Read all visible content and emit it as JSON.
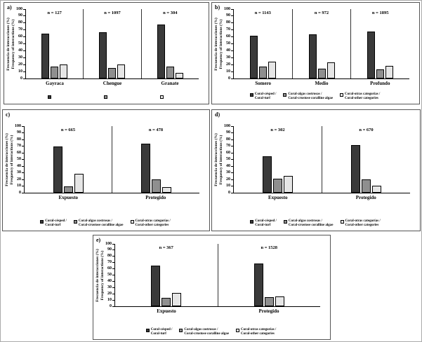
{
  "figure": {
    "y_axis_label_line1": "Frecuencia de interacciones (%)",
    "y_axis_label_line2": "Frequency of interactions (%)"
  },
  "colors": {
    "series1": "#3a3a3a",
    "series2": "#8f8f8f",
    "series3": "#e6e6e6",
    "axis": "#000000"
  },
  "legend": {
    "items": [
      {
        "key": "coral-turf",
        "line1": "Coral-césped /",
        "line2": "Coral-turf",
        "color": "#3a3a3a"
      },
      {
        "key": "coral-crustose-coralline-algae",
        "line1": "Coral-algas costrosas /",
        "line2": "Coral-crustose coralline algae",
        "color": "#8f8f8f"
      },
      {
        "key": "coral-other-categories",
        "line1": "Coral-otras categorías /",
        "line2": "Coral-other categories",
        "color": "#e6e6e6"
      }
    ]
  },
  "chart_data": [
    {
      "type": "bar",
      "panel": "a)",
      "categories": [
        "Gayraca",
        "Chengue",
        "Granate"
      ],
      "n_labels": [
        "n = 127",
        "n = 1097",
        "n = 304"
      ],
      "series": [
        {
          "name": "Coral-césped / Coral-turf",
          "values": [
            65,
            67,
            78
          ]
        },
        {
          "name": "Coral-algas costrosas / Coral-crustose coralline algae",
          "values": [
            17,
            15,
            17
          ]
        },
        {
          "name": "Coral-otras categorías / Coral-other categories",
          "values": [
            20,
            20,
            8
          ]
        }
      ],
      "ylabel": "Frecuencia de interacciones (%) / Frequency of interactions (%)",
      "ylim": [
        0,
        100
      ],
      "ytick_step": 10,
      "grid": false,
      "legend_text": false,
      "legend_position": "bottom"
    },
    {
      "type": "bar",
      "panel": "b)",
      "categories": [
        "Somero",
        "Medio",
        "Profundo"
      ],
      "n_labels": [
        "n = 1143",
        "n = 972",
        "n = 1895"
      ],
      "series": [
        {
          "name": "Coral-césped / Coral-turf",
          "values": [
            62,
            64,
            68
          ]
        },
        {
          "name": "Coral-algas costrosas / Coral-crustose coralline algae",
          "values": [
            17,
            14,
            13
          ]
        },
        {
          "name": "Coral-otras categorías / Coral-other categories",
          "values": [
            24,
            23,
            18
          ]
        }
      ],
      "ylabel": "Frecuencia de interacciones (%) / Frequency of interactions (%)",
      "ylim": [
        0,
        100
      ],
      "ytick_step": 10,
      "grid": false,
      "legend_text": true,
      "legend_position": "bottom"
    },
    {
      "type": "bar",
      "panel": "c)",
      "categories": [
        "Expuesto",
        "Protegido"
      ],
      "n_labels": [
        "n = 665",
        "n = 478"
      ],
      "series": [
        {
          "name": "Coral-césped / Coral-turf",
          "values": [
            70,
            74
          ]
        },
        {
          "name": "Coral-algas costrosas / Coral-crustose coralline algae",
          "values": [
            10,
            20
          ]
        },
        {
          "name": "Coral-otras categorías / Coral-other categories",
          "values": [
            28,
            8
          ]
        }
      ],
      "ylabel": "Frecuencia de interacciones (%) / Frequency of interactions (%)",
      "ylim": [
        0,
        100
      ],
      "ytick_step": 10,
      "grid": false,
      "legend_text": true,
      "legend_position": "bottom"
    },
    {
      "type": "bar",
      "panel": "d)",
      "categories": [
        "Expuesto",
        "Protegido"
      ],
      "n_labels": [
        "n = 302",
        "n = 670"
      ],
      "series": [
        {
          "name": "Coral-césped / Coral-turf",
          "values": [
            55,
            72
          ]
        },
        {
          "name": "Coral-algas costrosas / Coral-crustose coralline algae",
          "values": [
            21,
            20
          ]
        },
        {
          "name": "Coral-otras categorías / Coral-other categories",
          "values": [
            25,
            11
          ]
        }
      ],
      "ylabel": "Frecuencia de interacciones (%) / Frequency of interactions (%)",
      "ylim": [
        0,
        100
      ],
      "ytick_step": 10,
      "grid": false,
      "legend_text": true,
      "legend_position": "bottom"
    },
    {
      "type": "bar",
      "panel": "e)",
      "categories": [
        "Expuesto",
        "Protegido"
      ],
      "n_labels": [
        "n = 367",
        "n = 1528"
      ],
      "series": [
        {
          "name": "Coral-césped / Coral-turf",
          "values": [
            65,
            68
          ]
        },
        {
          "name": "Coral-algas costrosas / Coral-crustose coralline algae",
          "values": [
            14,
            15
          ]
        },
        {
          "name": "Coral-otras categorías / Coral-other categories",
          "values": [
            21,
            16
          ]
        }
      ],
      "ylabel": "Frecuencia de interacciones (%) / Frequency of interactions (%)",
      "ylim": [
        0,
        100
      ],
      "ytick_step": 10,
      "grid": false,
      "legend_text": true,
      "legend_position": "bottom"
    }
  ]
}
